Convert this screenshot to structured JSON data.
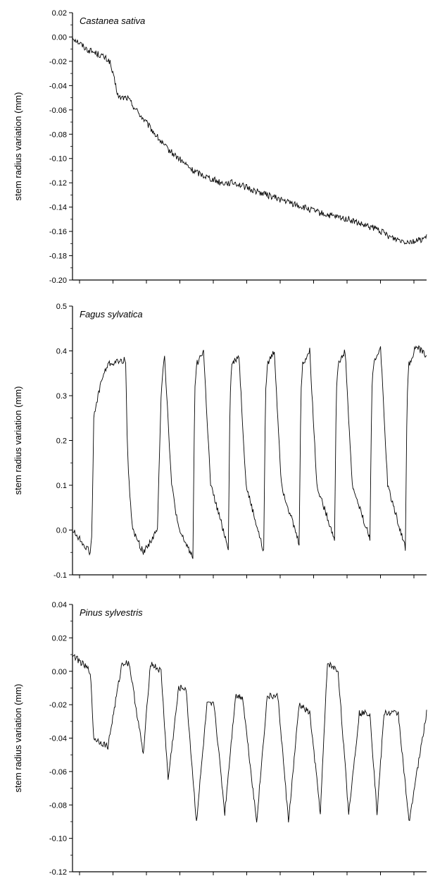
{
  "chart_data": [
    {
      "type": "line",
      "title": "Castanea sativa",
      "ylabel": "stem radius variation (mm)",
      "xlabel": "",
      "ylim": [
        -0.2,
        0.02
      ],
      "yticks": [
        "0.02",
        "0.00",
        "-0.02",
        "-0.04",
        "-0.06",
        "-0.08",
        "-0.10",
        "-0.12",
        "-0.14",
        "-0.16",
        "-0.18",
        "-0.20"
      ],
      "grid": false,
      "series": [
        {
          "x": [
            0,
            0.04,
            0.08,
            0.105,
            0.13,
            0.155,
            0.18,
            0.22,
            0.26,
            0.3,
            0.34,
            0.38,
            0.42,
            0.46,
            0.5,
            0.55,
            0.6,
            0.65,
            0.7,
            0.74,
            0.78,
            0.82,
            0.86,
            0.9,
            0.94,
            0.97,
            1.0
          ],
          "y": [
            0.0,
            -0.01,
            -0.015,
            -0.02,
            -0.05,
            -0.05,
            -0.06,
            -0.075,
            -0.09,
            -0.1,
            -0.11,
            -0.115,
            -0.12,
            -0.12,
            -0.125,
            -0.13,
            -0.135,
            -0.14,
            -0.145,
            -0.148,
            -0.15,
            -0.155,
            -0.158,
            -0.165,
            -0.168,
            -0.168,
            -0.165
          ]
        }
      ]
    },
    {
      "type": "line",
      "title": "Fagus sylvatica",
      "ylabel": "stem radius variation (mm)",
      "xlabel": "",
      "ylim": [
        -0.1,
        0.5
      ],
      "yticks": [
        "0.5",
        "0.4",
        "0.3",
        "0.2",
        "0.1",
        "0.0",
        "-0.1"
      ],
      "grid": false,
      "series": [
        {
          "x": [
            0,
            0.05,
            0.055,
            0.06,
            0.08,
            0.1,
            0.15,
            0.155,
            0.16,
            0.17,
            0.2,
            0.24,
            0.25,
            0.255,
            0.26,
            0.28,
            0.3,
            0.34,
            0.345,
            0.35,
            0.37,
            0.39,
            0.44,
            0.445,
            0.45,
            0.47,
            0.49,
            0.54,
            0.545,
            0.55,
            0.57,
            0.59,
            0.64,
            0.645,
            0.65,
            0.67,
            0.69,
            0.74,
            0.745,
            0.75,
            0.77,
            0.79,
            0.84,
            0.845,
            0.85,
            0.87,
            0.89,
            0.94,
            0.945,
            0.95,
            0.97,
            1.0
          ],
          "y": [
            0.0,
            -0.05,
            0.0,
            0.25,
            0.33,
            0.37,
            0.38,
            0.18,
            0.1,
            0.0,
            -0.05,
            0.0,
            0.3,
            0.36,
            0.39,
            0.1,
            0.0,
            -0.06,
            0.3,
            0.37,
            0.4,
            0.1,
            -0.04,
            0.3,
            0.37,
            0.39,
            0.1,
            -0.05,
            0.3,
            0.37,
            0.4,
            0.1,
            -0.03,
            0.3,
            0.37,
            0.4,
            0.1,
            -0.02,
            0.3,
            0.37,
            0.4,
            0.1,
            -0.02,
            0.3,
            0.37,
            0.41,
            0.1,
            -0.04,
            0.3,
            0.37,
            0.41,
            0.39
          ]
        }
      ]
    },
    {
      "type": "line",
      "title": "Pinus sylvestris",
      "ylabel": "stem radius variation (mm)",
      "xlabel": "",
      "ylim": [
        -0.12,
        0.04
      ],
      "yticks": [
        "0.04",
        "0.02",
        "0.00",
        "-0.02",
        "-0.04",
        "-0.06",
        "-0.08",
        "-0.10",
        "-0.12"
      ],
      "grid": false,
      "series": [
        {
          "x": [
            0,
            0.05,
            0.06,
            0.1,
            0.14,
            0.16,
            0.2,
            0.22,
            0.25,
            0.27,
            0.3,
            0.32,
            0.35,
            0.38,
            0.4,
            0.43,
            0.46,
            0.48,
            0.52,
            0.55,
            0.58,
            0.61,
            0.64,
            0.67,
            0.7,
            0.72,
            0.75,
            0.78,
            0.81,
            0.84,
            0.86,
            0.88,
            0.92,
            0.95,
            1.0
          ],
          "y": [
            0.01,
            0.0,
            -0.04,
            -0.045,
            0.005,
            0.005,
            -0.05,
            0.005,
            0.0,
            -0.065,
            -0.01,
            -0.01,
            -0.09,
            -0.02,
            -0.02,
            -0.085,
            -0.015,
            -0.015,
            -0.09,
            -0.015,
            -0.015,
            -0.09,
            -0.02,
            -0.025,
            -0.085,
            0.005,
            0.0,
            -0.085,
            -0.025,
            -0.025,
            -0.085,
            -0.025,
            -0.025,
            -0.09,
            -0.025
          ]
        }
      ]
    }
  ]
}
